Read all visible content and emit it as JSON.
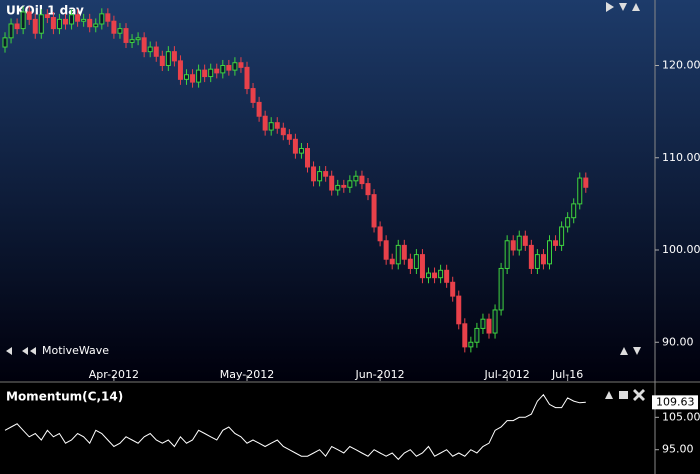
{
  "chart_data": [
    {
      "type": "candlestick",
      "title": "UKOil  1 day",
      "watermark": "MotiveWave",
      "up_color": "#3fd33f",
      "down_color": "#e8414a",
      "categories": [
        null,
        null,
        null,
        null,
        null,
        null,
        null,
        null,
        null,
        null,
        null,
        null,
        null,
        null,
        null,
        null,
        null,
        null,
        "Apr-2012",
        null,
        null,
        null,
        null,
        null,
        null,
        null,
        null,
        null,
        null,
        null,
        null,
        null,
        null,
        null,
        null,
        null,
        null,
        null,
        null,
        null,
        "May-2012",
        null,
        null,
        null,
        null,
        null,
        null,
        null,
        null,
        null,
        null,
        null,
        null,
        null,
        null,
        null,
        null,
        null,
        null,
        null,
        null,
        null,
        "Jun-2012",
        null,
        null,
        null,
        null,
        null,
        null,
        null,
        null,
        null,
        null,
        null,
        null,
        null,
        null,
        null,
        null,
        null,
        null,
        null,
        null,
        "Jul-2012",
        null,
        null,
        null,
        null,
        null,
        null,
        null,
        null,
        null,
        "Jul-16",
        null,
        null,
        null
      ],
      "open": [
        122.0,
        123.0,
        124.5,
        124.0,
        125.8,
        125.0,
        123.5,
        125.5,
        125.2,
        124.0,
        125.0,
        124.5,
        125.5,
        124.8,
        125.0,
        124.2,
        124.5,
        125.6,
        124.8,
        123.5,
        124.0,
        122.5,
        122.8,
        123.0,
        121.5,
        122.0,
        121.0,
        120.0,
        121.5,
        120.5,
        118.5,
        119.0,
        118.2,
        119.5,
        118.8,
        119.6,
        119.2,
        120.0,
        119.5,
        120.3,
        119.8,
        117.5,
        116.0,
        114.5,
        113.0,
        113.8,
        113.2,
        112.5,
        112.0,
        110.5,
        111.0,
        109.0,
        107.5,
        108.5,
        108.0,
        106.5,
        107.0,
        106.8,
        107.5,
        108.0,
        107.2,
        106.0,
        102.5,
        101.0,
        99.0,
        98.5,
        100.5,
        99.0,
        98.0,
        99.5,
        97.0,
        97.5,
        97.0,
        97.8,
        96.5,
        95.0,
        92.0,
        89.5,
        90.0,
        91.5,
        92.5,
        91.0,
        93.5,
        98.0,
        101.0,
        100.0,
        101.5,
        100.5,
        98.0,
        99.5,
        98.5,
        101.0,
        100.5,
        102.5,
        103.5,
        105.0,
        107.8
      ],
      "high": [
        123.6,
        125.1,
        125.1,
        126.4,
        126.4,
        125.6,
        126.1,
        126.1,
        125.8,
        125.6,
        125.6,
        126.1,
        126.1,
        125.6,
        125.6,
        125.1,
        126.2,
        126.2,
        125.4,
        124.6,
        124.6,
        123.4,
        123.6,
        123.6,
        122.6,
        122.6,
        121.6,
        122.1,
        122.1,
        121.1,
        119.6,
        119.6,
        120.1,
        120.1,
        120.2,
        120.2,
        120.6,
        120.6,
        120.9,
        120.9,
        120.4,
        118.1,
        116.6,
        115.1,
        114.4,
        114.4,
        113.8,
        113.1,
        112.6,
        111.6,
        111.6,
        109.6,
        109.1,
        109.1,
        108.6,
        107.6,
        107.6,
        108.1,
        108.6,
        108.6,
        107.8,
        106.6,
        103.1,
        101.6,
        99.6,
        101.1,
        101.1,
        99.6,
        100.1,
        100.1,
        98.1,
        98.1,
        98.4,
        98.4,
        97.1,
        95.6,
        92.6,
        90.6,
        92.1,
        93.1,
        93.1,
        94.1,
        98.6,
        101.6,
        101.6,
        102.1,
        102.1,
        101.1,
        100.1,
        100.1,
        101.6,
        101.6,
        103.1,
        104.1,
        105.6,
        108.4,
        108.4
      ],
      "low": [
        121.4,
        122.4,
        123.4,
        123.4,
        124.4,
        122.9,
        122.9,
        124.6,
        123.4,
        123.4,
        123.9,
        123.9,
        124.2,
        124.2,
        123.6,
        123.6,
        123.9,
        124.2,
        122.9,
        122.9,
        121.9,
        121.9,
        122.2,
        120.9,
        120.9,
        120.4,
        119.4,
        119.4,
        119.9,
        117.9,
        117.9,
        117.6,
        117.6,
        118.2,
        118.2,
        118.6,
        118.6,
        118.9,
        118.9,
        119.2,
        116.9,
        115.4,
        113.9,
        112.4,
        112.4,
        112.6,
        111.9,
        111.4,
        109.9,
        109.9,
        108.4,
        106.9,
        106.9,
        107.4,
        105.9,
        105.9,
        106.2,
        106.2,
        106.9,
        106.6,
        105.4,
        101.9,
        100.4,
        98.4,
        97.9,
        97.9,
        98.4,
        97.4,
        97.4,
        96.4,
        96.4,
        96.4,
        96.4,
        95.9,
        94.4,
        91.4,
        88.9,
        88.9,
        89.4,
        90.9,
        90.4,
        90.4,
        92.9,
        97.4,
        99.4,
        99.4,
        99.9,
        97.4,
        97.4,
        97.9,
        97.9,
        99.9,
        99.9,
        101.9,
        102.9,
        104.4,
        106.2
      ],
      "close": [
        123.0,
        124.5,
        124.0,
        125.8,
        125.0,
        123.5,
        125.5,
        125.2,
        124.0,
        125.0,
        124.5,
        125.5,
        124.8,
        125.0,
        124.2,
        124.5,
        125.6,
        124.8,
        123.5,
        124.0,
        122.5,
        122.8,
        123.0,
        121.5,
        122.0,
        121.0,
        120.0,
        121.5,
        120.5,
        118.5,
        119.0,
        118.2,
        119.5,
        118.8,
        119.6,
        119.2,
        120.0,
        119.5,
        120.3,
        119.8,
        117.5,
        116.0,
        114.5,
        113.0,
        113.8,
        113.2,
        112.5,
        112.0,
        110.5,
        111.0,
        109.0,
        107.5,
        108.5,
        108.0,
        106.5,
        107.0,
        106.8,
        107.5,
        108.0,
        107.2,
        106.0,
        102.5,
        101.0,
        99.0,
        98.5,
        100.5,
        99.0,
        98.0,
        99.5,
        97.0,
        97.5,
        97.0,
        97.8,
        96.5,
        95.0,
        92.0,
        89.5,
        90.0,
        91.5,
        92.5,
        91.0,
        93.5,
        98.0,
        101.0,
        100.0,
        101.5,
        100.5,
        98.0,
        99.5,
        98.5,
        101.0,
        100.5,
        102.5,
        103.5,
        105.0,
        107.8,
        106.8
      ],
      "ylim": [
        85.8,
        127.1
      ],
      "yticks": [
        {
          "value": 90,
          "label": "90.00"
        },
        {
          "value": 100,
          "label": "100.00"
        },
        {
          "value": 110,
          "label": "110.00"
        },
        {
          "value": 120,
          "label": "120.00"
        }
      ]
    },
    {
      "type": "line",
      "title": "Momentum(C,14)",
      "color": "#ffffff",
      "values": [
        101,
        102,
        103,
        101,
        99,
        100,
        98,
        101,
        99,
        100,
        97,
        98,
        100,
        99,
        97,
        101,
        100,
        98,
        96,
        97,
        99,
        98,
        97,
        99,
        100,
        98,
        97,
        98,
        96,
        99,
        97,
        98,
        101,
        100,
        99,
        98,
        101,
        102,
        100,
        99,
        97,
        98,
        97,
        96,
        97,
        98,
        96,
        95,
        94,
        93,
        93,
        94,
        95,
        93,
        96,
        95,
        94,
        96,
        95,
        94,
        93,
        95,
        94,
        93,
        94,
        92,
        94,
        95,
        93,
        94,
        96,
        93,
        94,
        95,
        93,
        94,
        93,
        95,
        94,
        96,
        97,
        101,
        102,
        104,
        104,
        105,
        105,
        106,
        110,
        112,
        109,
        108,
        108,
        111,
        110,
        109.5,
        109.63
      ],
      "ylim": [
        87.5,
        115.6
      ],
      "yticks": [
        {
          "value": 95,
          "label": "95.00"
        },
        {
          "value": 105,
          "label": "105.00"
        }
      ]
    }
  ]
}
